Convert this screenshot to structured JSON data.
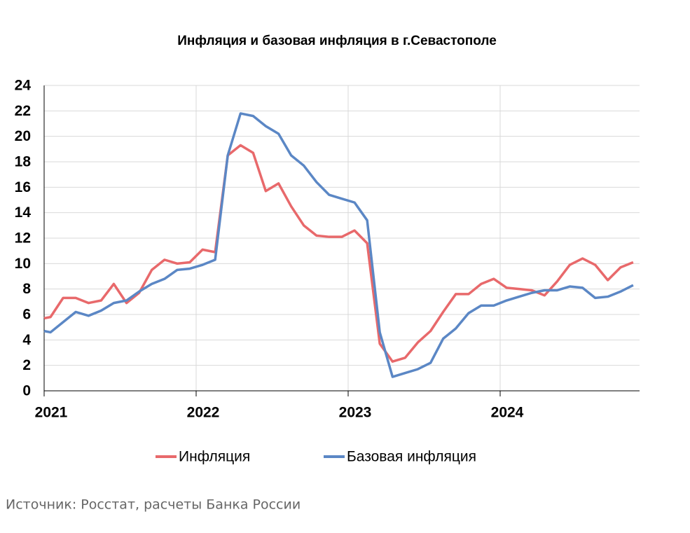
{
  "chart_data": {
    "type": "line",
    "title": "Инфляция и базовая инфляция в г.Севастополе",
    "source": "Источник: Росстат, расчеты Банка России",
    "x": [
      2021,
      2021.042,
      2021.125,
      2021.208,
      2021.292,
      2021.375,
      2021.458,
      2021.542,
      2021.625,
      2021.708,
      2021.792,
      2021.875,
      2021.958,
      2022.042,
      2022.125,
      2022.208,
      2022.292,
      2022.375,
      2022.458,
      2022.542,
      2022.625,
      2022.708,
      2022.792,
      2022.875,
      2022.958,
      2023.042,
      2023.125,
      2023.208,
      2023.292,
      2023.375,
      2023.458,
      2023.542,
      2023.625,
      2023.708,
      2023.792,
      2023.875,
      2023.958,
      2024.042,
      2024.125,
      2024.208,
      2024.292,
      2024.375,
      2024.458,
      2024.542,
      2024.625,
      2024.708,
      2024.792,
      2024.875
    ],
    "series": [
      {
        "name": "Инфляция",
        "color": "#e8696b",
        "values": [
          5.7,
          5.8,
          7.3,
          7.3,
          6.9,
          7.1,
          8.4,
          6.9,
          7.7,
          9.5,
          10.3,
          10.0,
          10.1,
          11.1,
          10.9,
          18.5,
          19.3,
          18.7,
          15.7,
          16.3,
          14.5,
          13.0,
          12.2,
          12.1,
          12.1,
          12.6,
          11.6,
          3.7,
          2.3,
          2.6,
          3.8,
          4.7,
          6.2,
          7.6,
          7.6,
          8.4,
          8.8,
          8.1,
          8.0,
          7.9,
          7.5,
          8.6,
          9.9,
          10.4,
          9.9,
          8.7,
          9.7,
          10.1
        ]
      },
      {
        "name": "Базовая инфляция",
        "color": "#5b87c5",
        "values": [
          4.7,
          4.6,
          5.4,
          6.2,
          5.9,
          6.3,
          6.9,
          7.1,
          7.8,
          8.4,
          8.8,
          9.5,
          9.6,
          9.9,
          10.3,
          18.5,
          21.8,
          21.6,
          20.8,
          20.2,
          18.5,
          17.7,
          16.4,
          15.4,
          15.1,
          14.8,
          13.4,
          4.6,
          1.1,
          1.4,
          1.7,
          2.2,
          4.1,
          4.9,
          6.1,
          6.7,
          6.7,
          7.1,
          7.4,
          7.7,
          7.9,
          7.9,
          8.2,
          8.1,
          7.3,
          7.4,
          7.8,
          8.3
        ]
      }
    ],
    "xlim": [
      2021,
      2024.917
    ],
    "xticks": [
      2021,
      2022,
      2023,
      2024
    ],
    "ylim": [
      0,
      24
    ],
    "yticks": [
      0,
      2,
      4,
      6,
      8,
      10,
      12,
      14,
      16,
      18,
      20,
      22,
      24
    ],
    "grid": true,
    "legend": "bottom"
  }
}
